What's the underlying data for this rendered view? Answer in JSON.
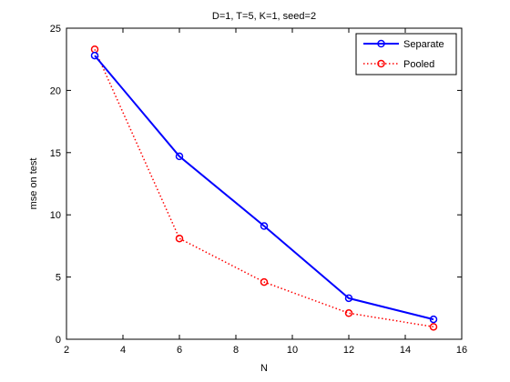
{
  "chart_data": {
    "type": "line",
    "title": "D=1, T=5, K=1, seed=2",
    "xlabel": "N",
    "ylabel": "mse on test",
    "xlim": [
      2,
      16
    ],
    "ylim": [
      0,
      25
    ],
    "xticks": [
      2,
      4,
      6,
      8,
      10,
      12,
      14,
      16
    ],
    "yticks": [
      0,
      5,
      10,
      15,
      20,
      25
    ],
    "grid": false,
    "legend_position": "top-right",
    "series": [
      {
        "name": "Separate",
        "color": "#0000ff",
        "line_style": "solid",
        "marker": "circle",
        "x": [
          3,
          6,
          9,
          12,
          15
        ],
        "y": [
          22.8,
          14.7,
          9.1,
          3.3,
          1.6
        ]
      },
      {
        "name": "Pooled",
        "color": "#ff0000",
        "line_style": "dotted",
        "marker": "circle",
        "x": [
          3,
          6,
          9,
          12,
          15
        ],
        "y": [
          23.3,
          8.1,
          4.6,
          2.1,
          1.0
        ]
      }
    ]
  }
}
